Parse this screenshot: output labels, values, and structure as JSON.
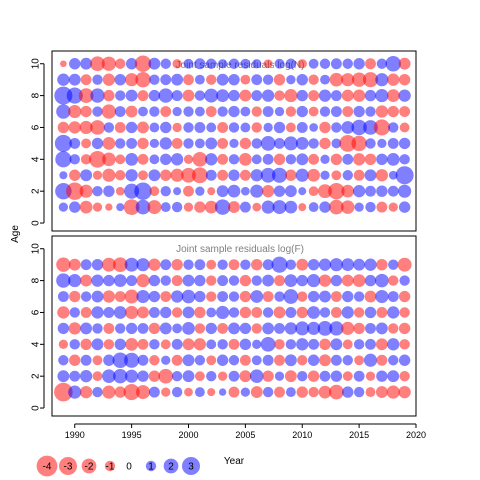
{
  "figure": {
    "y_axis_label": "Age",
    "x_axis_label": "Year"
  },
  "colors": {
    "negative": "#ff0000",
    "positive": "#0000ff",
    "fill_alpha": 0.5,
    "panel_title": "#808080"
  },
  "chart_data": [
    {
      "type": "scatter",
      "subtype": "bubble",
      "title": "Joint sample residuals log(N)",
      "xlim": [
        1988,
        2020
      ],
      "ylim": [
        -0.5,
        10.8
      ],
      "years": [
        1989,
        1990,
        1991,
        1992,
        1993,
        1994,
        1995,
        1996,
        1997,
        1998,
        1999,
        2000,
        2001,
        2002,
        2003,
        2004,
        2005,
        2006,
        2007,
        2008,
        2009,
        2010,
        2011,
        2012,
        2013,
        2014,
        2015,
        2016,
        2017,
        2018,
        2019
      ],
      "ages": [
        1,
        2,
        3,
        4,
        5,
        6,
        7,
        8,
        9,
        10
      ],
      "yticks": [
        0,
        2,
        4,
        6,
        8,
        10
      ],
      "grid": false,
      "residuals_by_age": [
        [
          0.8,
          1.2,
          -1.5,
          -0.8,
          -0.5,
          0.6,
          -2.3,
          2.0,
          -1.8,
          0.9,
          1.0,
          -0.8,
          -1.2,
          -1.5,
          2.2,
          -1.3,
          1.1,
          -0.7,
          1.6,
          1.8,
          1.5,
          -0.6,
          0.9,
          1.2,
          -2.0,
          -1.7,
          0.8,
          1.0,
          -1.1,
          -0.8,
          1.2
        ],
        [
          2.5,
          -2.8,
          -1.6,
          1.0,
          1.2,
          -0.7,
          2.1,
          2.8,
          -0.9,
          1.0,
          0.6,
          -1.1,
          0.8,
          -0.6,
          1.3,
          1.5,
          0.7,
          1.6,
          -1.4,
          1.2,
          1.3,
          0.6,
          -0.9,
          -1.8,
          -2.5,
          -1.5,
          1.4,
          1.1,
          1.2,
          1.1,
          1.6
        ],
        [
          0.6,
          -1.2,
          1.3,
          -0.8,
          -1.6,
          -1.0,
          1.4,
          -0.9,
          1.3,
          -1.2,
          -1.6,
          -2.0,
          -2.3,
          1.1,
          -1.1,
          1.2,
          -1.1,
          1.4,
          2.0,
          2.1,
          -1.2,
          1.6,
          -1.5,
          0.8,
          -0.9,
          1.0,
          -1.1,
          1.3,
          -1.4,
          0.7,
          3.0
        ],
        [
          2.4,
          1.0,
          -1.0,
          -2.6,
          -1.7,
          -0.9,
          1.5,
          -1.1,
          0.9,
          1.2,
          1.4,
          -0.8,
          -2.0,
          1.4,
          -1.1,
          1.0,
          -1.5,
          0.9,
          1.1,
          -1.2,
          1.0,
          1.3,
          -1.1,
          0.8,
          -1.2,
          1.1,
          -1.4,
          -1.2,
          1.2,
          1.5,
          1.0
        ],
        [
          2.7,
          1.1,
          -0.9,
          1.2,
          -1.5,
          1.0,
          1.1,
          -1.2,
          0.8,
          1.4,
          -1.1,
          1.0,
          0.9,
          1.3,
          -1.1,
          0.8,
          -1.2,
          1.0,
          2.0,
          1.1,
          1.8,
          1.5,
          1.0,
          -1.2,
          0.9,
          -2.6,
          -2.2,
          1.0,
          0.8,
          1.1,
          1.2
        ],
        [
          -1.2,
          -1.4,
          -1.6,
          -2.0,
          1.0,
          -1.1,
          1.2,
          -1.3,
          0.9,
          1.2,
          -0.8,
          1.0,
          1.1,
          0.9,
          -1.1,
          1.0,
          0.9,
          -1.0,
          0.8,
          1.2,
          -0.9,
          1.1,
          0.7,
          -1.2,
          1.0,
          1.5,
          2.2,
          2.0,
          -2.4,
          1.0,
          -0.9
        ],
        [
          1.9,
          -1.6,
          -1.2,
          1.0,
          -1.9,
          1.1,
          -1.3,
          0.9,
          1.0,
          -1.1,
          0.8,
          1.0,
          0.9,
          -1.1,
          1.0,
          1.2,
          0.9,
          -1.0,
          1.1,
          0.8,
          -1.0,
          1.2,
          -0.9,
          1.0,
          1.1,
          -1.1,
          1.2,
          1.0,
          -1.4,
          -1.2,
          -1.1
        ],
        [
          3.0,
          2.4,
          -2.0,
          1.9,
          -1.2,
          1.0,
          1.3,
          -1.1,
          1.2,
          1.9,
          1.1,
          -1.3,
          1.0,
          1.8,
          1.5,
          1.2,
          -1.3,
          1.1,
          1.4,
          -1.0,
          -1.6,
          1.2,
          -1.1,
          1.4,
          1.1,
          -1.3,
          -1.4,
          1.2,
          1.6,
          -1.5,
          1.4
        ],
        [
          1.4,
          1.3,
          -1.1,
          1.0,
          -1.4,
          1.2,
          -1.6,
          -2.2,
          1.0,
          1.1,
          1.3,
          -1.1,
          0.9,
          -1.0,
          1.3,
          1.2,
          -0.9,
          1.1,
          1.0,
          -1.2,
          0.8,
          1.2,
          -1.0,
          0.9,
          -1.7,
          -1.6,
          -1.9,
          -2.1,
          1.6,
          -1.4,
          -1.2
        ],
        [
          -0.4,
          1.2,
          1.3,
          -2.0,
          -1.9,
          -1.0,
          1.2,
          -2.5,
          1.3,
          1.0,
          -0.8,
          0.9,
          1.1,
          1.0,
          0.8,
          1.0,
          0.9,
          0.8,
          -0.7,
          0.9,
          1.0,
          -0.8,
          0.9,
          1.0,
          1.1,
          1.0,
          1.2,
          -1.1,
          1.0,
          2.2,
          -1.3
        ]
      ]
    },
    {
      "type": "scatter",
      "subtype": "bubble",
      "title": "Joint sample residuals log(F)",
      "xlim": [
        1988,
        2020
      ],
      "ylim": [
        -0.5,
        10.8
      ],
      "years": [
        1989,
        1990,
        1991,
        1992,
        1993,
        1994,
        1995,
        1996,
        1997,
        1998,
        1999,
        2000,
        2001,
        2002,
        2003,
        2004,
        2005,
        2006,
        2007,
        2008,
        2009,
        2010,
        2011,
        2012,
        2013,
        2014,
        2015,
        2016,
        2017,
        2018,
        2019
      ],
      "ages": [
        1,
        2,
        3,
        4,
        5,
        6,
        7,
        8,
        9
      ],
      "xticks": [
        1990,
        1995,
        2000,
        2005,
        2010,
        2015,
        2020
      ],
      "yticks": [
        0,
        2,
        4,
        6,
        8,
        10
      ],
      "grid": false,
      "residuals_by_age": [
        [
          -3.2,
          1.6,
          -1.4,
          1.0,
          -1.6,
          -1.2,
          -2.4,
          -1.8,
          1.1,
          -0.8,
          1.0,
          -0.7,
          0.9,
          -0.6,
          0.5,
          -1.1,
          0.8,
          -1.3,
          1.0,
          -1.1,
          0.9,
          -1.2,
          -1.0,
          -1.5,
          -2.0,
          1.2,
          1.0,
          -0.9,
          -1.3,
          -1.6,
          -1.4
        ],
        [
          1.3,
          1.1,
          1.4,
          -0.9,
          1.7,
          1.9,
          1.6,
          1.2,
          -1.2,
          -2.0,
          1.0,
          1.3,
          -0.9,
          1.0,
          -0.8,
          1.1,
          -1.3,
          1.7,
          -1.2,
          0.8,
          -1.3,
          1.0,
          -1.2,
          1.1,
          1.2,
          -0.9,
          1.1,
          -0.8,
          1.2,
          1.3,
          -1.0
        ],
        [
          1.0,
          -1.2,
          1.1,
          -0.9,
          1.2,
          2.2,
          2.1,
          1.1,
          -1.0,
          0.8,
          -1.1,
          1.3,
          1.0,
          -0.9,
          1.2,
          1.0,
          -1.1,
          0.9,
          1.1,
          -1.1,
          1.3,
          -1.0,
          1.2,
          -1.3,
          1.1,
          1.0,
          -0.9,
          1.6,
          -1.1,
          1.0,
          1.2
        ],
        [
          -0.8,
          1.0,
          -1.2,
          1.3,
          -1.0,
          1.2,
          -1.5,
          -1.1,
          1.0,
          -0.9,
          1.1,
          -1.3,
          -1.4,
          0.9,
          1.0,
          -1.1,
          1.2,
          0.8,
          2.0,
          -1.0,
          1.0,
          1.4,
          1.1,
          -1.2,
          1.3,
          -0.9,
          1.0,
          1.1,
          -1.3,
          1.4,
          -1.0
        ],
        [
          1.2,
          -1.4,
          1.3,
          1.0,
          -1.1,
          1.0,
          1.2,
          1.1,
          -1.2,
          1.3,
          0.9,
          1.5,
          -1.0,
          1.2,
          -1.1,
          1.3,
          1.2,
          -1.0,
          1.3,
          1.1,
          1.4,
          1.8,
          1.6,
          2.0,
          1.9,
          -1.6,
          -1.2,
          1.1,
          1.3,
          -1.0,
          -1.2
        ],
        [
          -1.4,
          1.0,
          -1.1,
          1.4,
          1.1,
          1.5,
          -1.6,
          -1.3,
          1.1,
          1.2,
          -1.0,
          1.3,
          -1.2,
          0.9,
          1.6,
          1.0,
          -1.2,
          -1.1,
          1.0,
          -1.3,
          1.1,
          -1.2,
          1.5,
          1.0,
          -1.1,
          1.4,
          -1.0,
          1.2,
          -1.1,
          1.4,
          -1.0
        ],
        [
          1.1,
          -1.2,
          1.0,
          1.3,
          -1.4,
          -1.1,
          -1.8,
          1.6,
          1.2,
          -1.1,
          1.4,
          1.7,
          1.2,
          -1.0,
          1.1,
          1.0,
          -1.2,
          1.5,
          -1.1,
          1.0,
          2.0,
          -1.0,
          1.2,
          1.3,
          -1.1,
          1.2,
          1.0,
          -1.3,
          1.6,
          1.1,
          -1.2
        ],
        [
          1.9,
          1.6,
          -1.3,
          1.4,
          1.2,
          1.5,
          1.1,
          -1.6,
          1.2,
          1.0,
          -1.1,
          1.3,
          1.2,
          -1.0,
          1.1,
          1.0,
          -1.2,
          1.0,
          1.3,
          -1.1,
          1.5,
          1.2,
          1.6,
          -1.4,
          1.2,
          -1.3,
          -1.5,
          1.2,
          1.7,
          -1.0,
          1.0
        ],
        [
          -1.9,
          -1.3,
          1.1,
          1.2,
          -1.8,
          -2.0,
          1.8,
          1.6,
          -1.4,
          1.1,
          -1.2,
          1.0,
          1.1,
          -0.9,
          1.0,
          -1.1,
          1.0,
          -1.2,
          1.1,
          2.4,
          1.0,
          -1.3,
          1.2,
          1.4,
          1.6,
          1.5,
          1.3,
          1.4,
          -1.2,
          1.0,
          -1.8
        ]
      ]
    }
  ],
  "legend": {
    "placement": "bottom-left",
    "values": [
      -4,
      -3,
      -2,
      -1,
      0,
      1,
      2,
      3
    ],
    "labels": [
      "-4",
      "-3",
      "-2",
      "-1",
      "0",
      "1",
      "2",
      "3"
    ]
  }
}
